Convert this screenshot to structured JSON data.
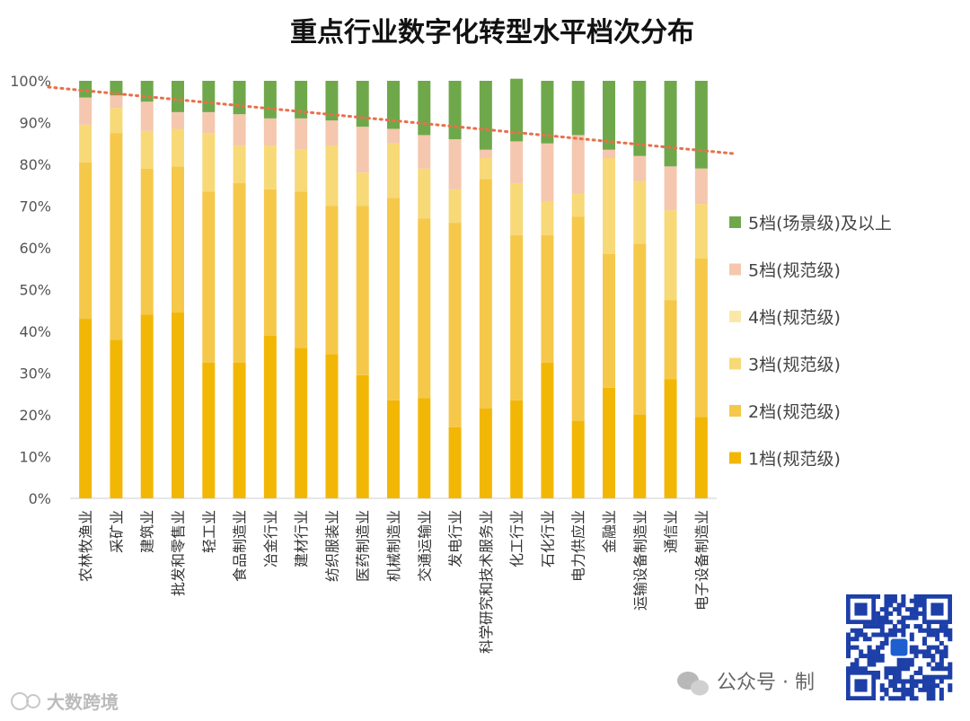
{
  "chart_data": {
    "type": "stacked-bar",
    "title": "重点行业数字化转型水平档次分布",
    "ylim": [
      0,
      100
    ],
    "yticks": [
      "0%",
      "10%",
      "20%",
      "30%",
      "40%",
      "50%",
      "60%",
      "70%",
      "80%",
      "90%",
      "100%"
    ],
    "categories": [
      "农林牧渔业",
      "采矿业",
      "建筑业",
      "批发和零售业",
      "轻工业",
      "食品制造业",
      "冶金行业",
      "建材行业",
      "纺织服装业",
      "医药制造业",
      "机械制造业",
      "交通运输业",
      "发电行业",
      "科学研究和技术服务业",
      "化工行业",
      "石化行业",
      "电力供应业",
      "金融业",
      "运输设备制造业",
      "通信业",
      "电子设备制造业"
    ],
    "series": [
      {
        "name": "1档(规范级)",
        "color": "#F2B705",
        "values": [
          43,
          38,
          44,
          44.5,
          32.5,
          32.5,
          39,
          36,
          34.5,
          29.5,
          23.5,
          24,
          17,
          21.5,
          23.5,
          32.5,
          18.5,
          26.5,
          20,
          28.5,
          19.5
        ]
      },
      {
        "name": "2档(规范级)",
        "color": "#F5C84A",
        "values": [
          37.5,
          49.5,
          35,
          35,
          41,
          43,
          35,
          37.5,
          35.5,
          40.5,
          48.5,
          43,
          49,
          55,
          39.5,
          30.5,
          49,
          32,
          41,
          19,
          38
        ]
      },
      {
        "name": "3档(规范级)",
        "color": "#F8D978",
        "values": [
          9,
          6,
          9,
          9,
          14,
          9,
          10.5,
          10,
          14.5,
          8,
          13,
          12,
          8,
          5,
          12.5,
          8,
          5.5,
          23,
          15,
          21.5,
          13
        ]
      },
      {
        "name": "4档(规范级)",
        "color": "#FBE8A8",
        "values": [
          0,
          0,
          0,
          0,
          0,
          0,
          0,
          0,
          0,
          0,
          0,
          0,
          0,
          0,
          0,
          0,
          0,
          0,
          0,
          0,
          0
        ]
      },
      {
        "name": "5档(规范级)",
        "color": "#F5C7AE",
        "values": [
          6.5,
          3,
          7,
          4,
          5,
          7.5,
          6.5,
          7.5,
          6,
          11,
          3.5,
          8,
          12,
          2,
          10,
          14,
          14,
          2,
          6,
          10.5,
          8.5
        ]
      },
      {
        "name": "5档(场景级)及以上",
        "color": "#6FA84A",
        "values": [
          4,
          3.5,
          5,
          7.5,
          7.5,
          8,
          9,
          9,
          9.5,
          11,
          11.5,
          13,
          14,
          16.5,
          15,
          15,
          13,
          16.5,
          18,
          20.5,
          21
        ]
      }
    ],
    "trendline": {
      "start": 98.5,
      "end": 82.5,
      "color": "#E8704A",
      "style": "dotted"
    },
    "legend_position": "right"
  },
  "footer": {
    "wechat_label": "公众号 · 制",
    "watermark": "大数跨境"
  }
}
